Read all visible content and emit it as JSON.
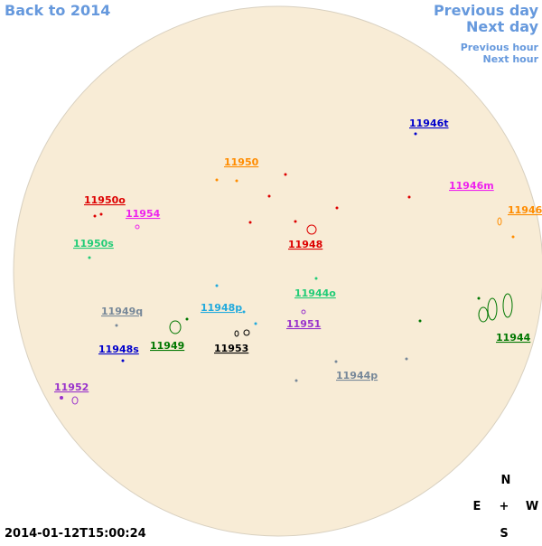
{
  "navigation": {
    "back": "Back to 2014",
    "previous_day": "Previous day",
    "next_day": "Next day",
    "previous_hour": "Previous hour",
    "next_hour": "Next hour"
  },
  "timestamp": "2014-01-12T15:00:24",
  "compass": {
    "north": "N",
    "east": "E",
    "center": "+",
    "west": "W",
    "south": "S"
  },
  "regions": [
    {
      "label": "11946t",
      "color": "#0000cc"
    },
    {
      "label": "11950",
      "color": "#ff8c00"
    },
    {
      "label": "11946m",
      "color": "#ee22ee"
    },
    {
      "label": "11950o",
      "color": "#dd0000"
    },
    {
      "label": "11954",
      "color": "#ee22ee"
    },
    {
      "label": "11946",
      "color": "#ff8c00"
    },
    {
      "label": "11950s",
      "color": "#22cc77"
    },
    {
      "label": "11948",
      "color": "#dd0000"
    },
    {
      "label": "11944o",
      "color": "#22cc77"
    },
    {
      "label": "11949q",
      "color": "#778899"
    },
    {
      "label": "11948p",
      "color": "#22aadd"
    },
    {
      "label": "11951",
      "color": "#9933cc"
    },
    {
      "label": "11948s",
      "color": "#0000cc"
    },
    {
      "label": "11949",
      "color": "#007700"
    },
    {
      "label": "11953",
      "color": "#000000"
    },
    {
      "label": "11944",
      "color": "#007700"
    },
    {
      "label": "11944p",
      "color": "#778899"
    },
    {
      "label": "11952",
      "color": "#9933cc"
    }
  ]
}
